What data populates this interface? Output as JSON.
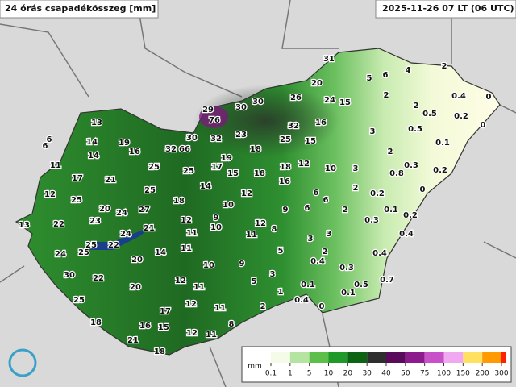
{
  "header": {
    "title": "24 órás csapadékösszeg [mm]",
    "timestamp": "2025-11-26 07 LT (06 UTC)"
  },
  "stations": [
    "31",
    "5",
    "6",
    "4",
    "2",
    "20",
    "30",
    "26",
    "24",
    "15",
    "2",
    "0.4",
    "0",
    "29",
    "30",
    "76",
    "2",
    "0.5",
    "0.2",
    "0",
    "13",
    "32",
    "16",
    "0.5",
    "6",
    "6",
    "14",
    "19",
    "30",
    "32",
    "23",
    "25",
    "15",
    "3",
    "0.1",
    "14",
    "16",
    "32",
    "66",
    "18",
    "2",
    "19",
    "11",
    "25",
    "17",
    "18",
    "12",
    "10",
    "3",
    "0.3",
    "0.2",
    "0.8",
    "17",
    "21",
    "25",
    "15",
    "18",
    "14",
    "16",
    "2",
    "0",
    "12",
    "25",
    "6",
    "0.2",
    "25",
    "18",
    "10",
    "12",
    "6",
    "20",
    "24",
    "27",
    "9",
    "6",
    "2",
    "0.1",
    "0.2",
    "13",
    "22",
    "23",
    "12",
    "9",
    "10",
    "12",
    "8",
    "0.3",
    "24",
    "21",
    "11",
    "11",
    "3",
    "3",
    "0.4",
    "25",
    "22",
    "24",
    "25",
    "11",
    "5",
    "2",
    "0.4",
    "0.4",
    "20",
    "14",
    "10",
    "9",
    "0.3",
    "30",
    "22",
    "12",
    "3",
    "5",
    "0.1",
    "0.5",
    "0.7",
    "20",
    "11",
    "1",
    "0.1",
    "25",
    "12",
    "2",
    "0.4",
    "0",
    "11",
    "17",
    "18",
    "16",
    "15",
    "8",
    "12",
    "11",
    "21",
    "18"
  ],
  "legend": {
    "unit": "mm",
    "ticks": [
      "0.1",
      "1",
      "5",
      "10",
      "20",
      "30",
      "40",
      "50",
      "75",
      "100",
      "150",
      "200",
      "300"
    ]
  }
}
